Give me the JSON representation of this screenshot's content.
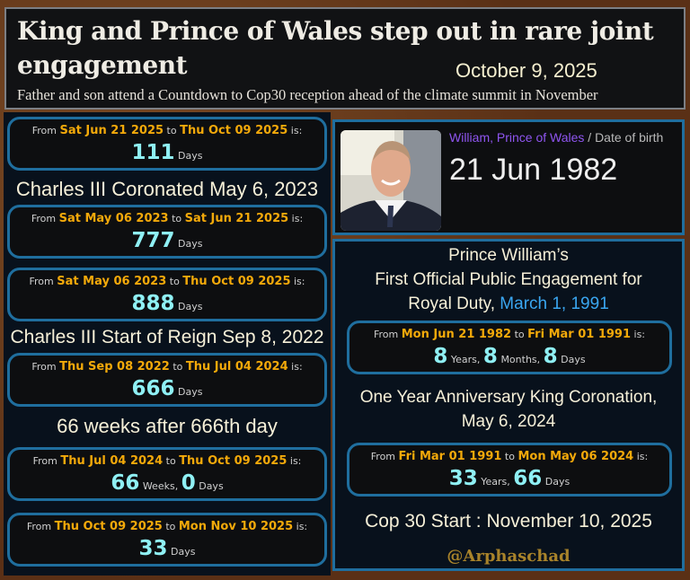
{
  "header": {
    "title": "King and Prince of Wales step out in rare joint engagement",
    "date": "October 9, 2025",
    "subtitle": "Father and son attend a Countdown to Cop30 reception ahead of the climate summit in November"
  },
  "labels": {
    "from": "From",
    "to": "to",
    "is": "is:"
  },
  "left": {
    "box1": {
      "from": "Sat Jun 21 2025",
      "to": "Thu Oct 09 2025",
      "n1": "111",
      "u1": "Days"
    },
    "heading1": "Charles III Coronated May 6, 2023",
    "box2": {
      "from": "Sat May 06 2023",
      "to": "Sat Jun 21 2025",
      "n1": "777",
      "u1": "Days"
    },
    "box3": {
      "from": "Sat May 06 2023",
      "to": "Thu Oct 09 2025",
      "n1": "888",
      "u1": "Days"
    },
    "heading2": "Charles III Start of Reign Sep 8, 2022",
    "box4": {
      "from": "Thu Sep 08 2022",
      "to": "Thu Jul 04 2024",
      "n1": "666",
      "u1": "Days"
    },
    "heading3": "66 weeks after 666th day",
    "box5": {
      "from": "Thu Jul 04 2024",
      "to": "Thu Oct 09 2025",
      "n1": "66",
      "u1": "Weeks,",
      "n2": "0",
      "u2": "Days"
    },
    "box6": {
      "from": "Thu Oct 09 2025",
      "to": "Mon Nov 10 2025",
      "n1": "33",
      "u1": "Days"
    }
  },
  "profile": {
    "name": "William, Prince of Wales",
    "sep": "/ Date of birth",
    "dob": "21 Jun 1982"
  },
  "right": {
    "heading1a": "Prince William’s",
    "heading1b": "First Official Public Engagement for",
    "heading1c": "Royal Duty,",
    "heading1date": "March 1, 1991",
    "box1": {
      "from": "Mon Jun 21 1982",
      "to": "Fri Mar 01 1991",
      "n1": "8",
      "u1": "Years,",
      "n2": "8",
      "u2": "Months,",
      "n3": "8",
      "u3": "Days"
    },
    "heading2a": "One Year Anniversary King Coronation,",
    "heading2b": "May 6, 2024",
    "box2": {
      "from": "Fri Mar 01 1991",
      "to": "Mon May 06 2024",
      "n1": "33",
      "u1": "Years,",
      "n2": "66",
      "u2": "Days"
    },
    "heading3": "Cop 30 Start : November 10, 2025",
    "watermark": "@Arphaschad"
  },
  "colors": {
    "accent_date": "#f3a90a",
    "number": "#8ff0f4",
    "border": "#1f6e9e",
    "name": "#8f55f0",
    "link_date": "#3aa6f0"
  }
}
